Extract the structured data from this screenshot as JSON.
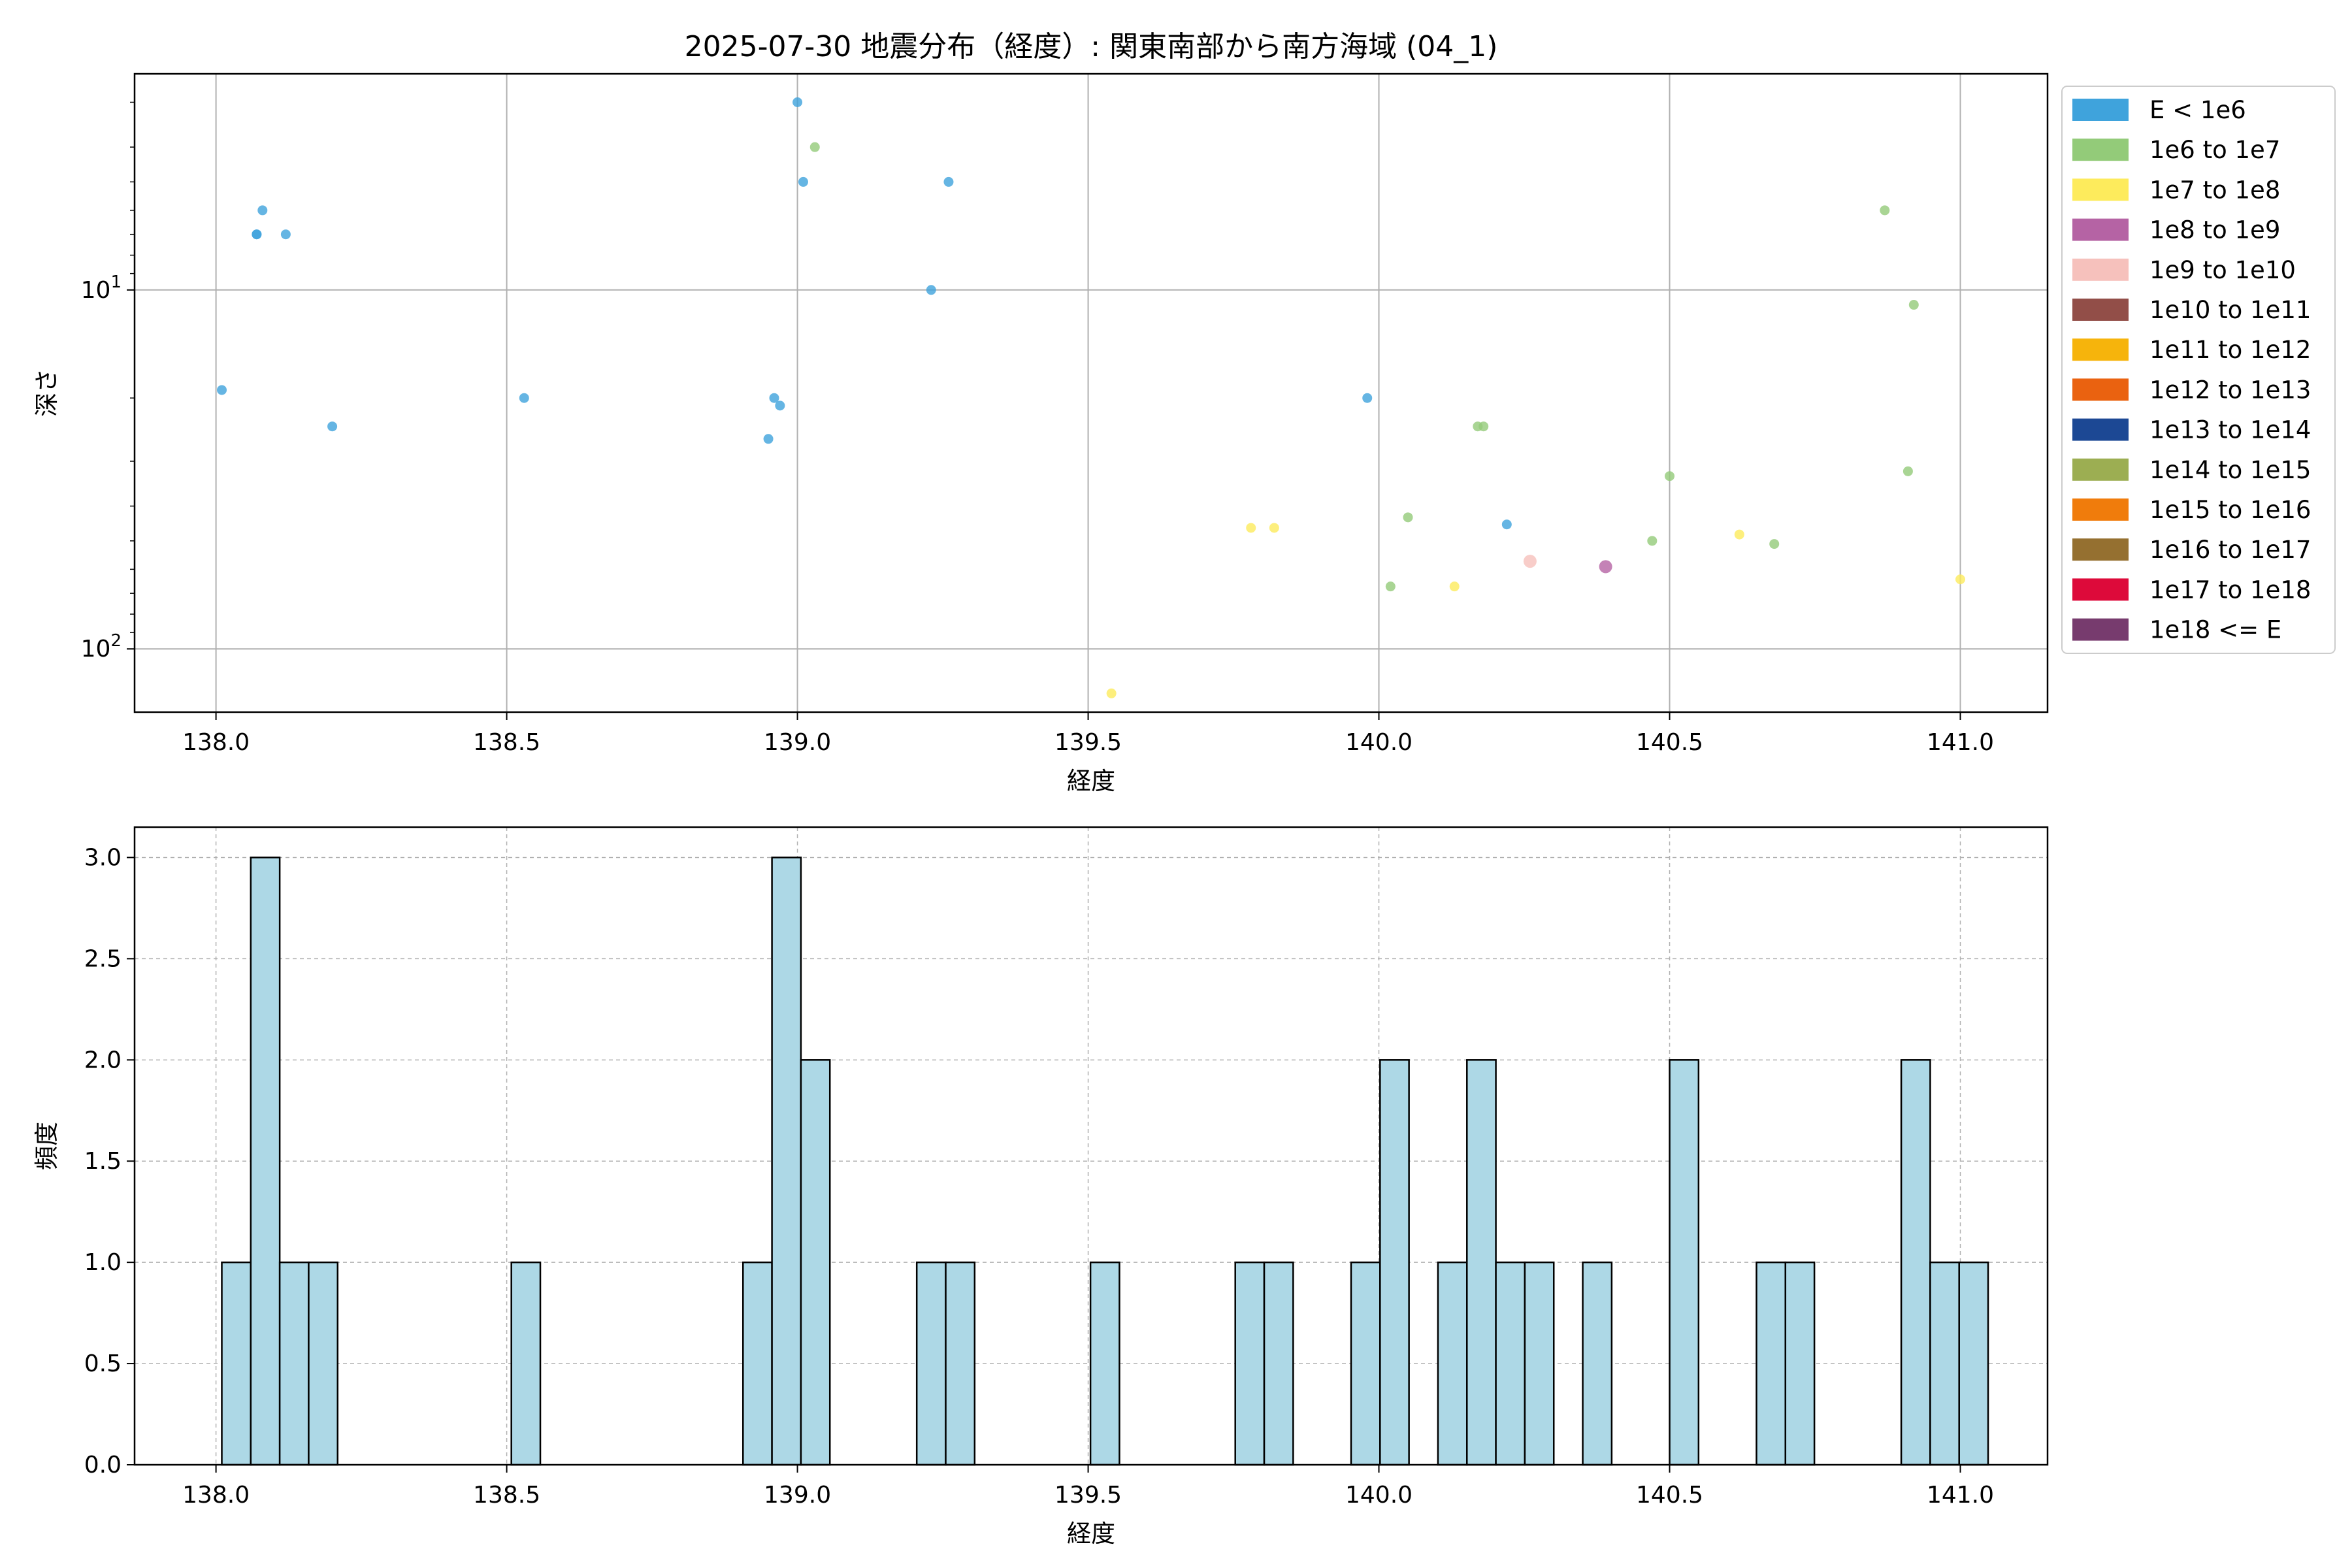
{
  "chart_data": [
    {
      "type": "scatter",
      "title": "2025-07-30 地震分布（経度）: 関東南部から南方海域 (04_1)",
      "xlabel": "経度",
      "ylabel": "深さ",
      "xlim": [
        137.86,
        141.15
      ],
      "ylim": [
        150,
        2.5
      ],
      "y_scale": "log",
      "y_inverted": true,
      "x_ticks": [
        "138.0",
        "138.5",
        "139.0",
        "139.5",
        "140.0",
        "140.5",
        "141.0"
      ],
      "y_ticks": [
        "10^1",
        "10^2"
      ],
      "grid": true,
      "legend_position": "outside-right",
      "legend": [
        {
          "label": "E < 1e6",
          "color": "#3fa3dc"
        },
        {
          "label": "1e6 to 1e7",
          "color": "#93cb79"
        },
        {
          "label": "1e7 to 1e8",
          "color": "#fdeb5c"
        },
        {
          "label": "1e8 to 1e9",
          "color": "#b563a4"
        },
        {
          "label": "1e9 to 1e10",
          "color": "#f6c1bc"
        },
        {
          "label": "1e10 to 1e11",
          "color": "#924e48"
        },
        {
          "label": "1e11 to 1e12",
          "color": "#f6b40c"
        },
        {
          "label": "1e12 to 1e13",
          "color": "#ea6210"
        },
        {
          "label": "1e13 to 1e14",
          "color": "#1c4894"
        },
        {
          "label": "1e14 to 1e15",
          "color": "#9cae52"
        },
        {
          "label": "1e15 to 1e16",
          "color": "#f07c0c"
        },
        {
          "label": "1e16 to 1e17",
          "color": "#957030"
        },
        {
          "label": "1e17 to 1e18",
          "color": "#dd0a3a"
        },
        {
          "label": "1e18 <= E",
          "color": "#773b6e"
        }
      ],
      "series": [
        {
          "label": "E < 1e6",
          "points": [
            [
              138.01,
              19
            ],
            [
              138.07,
              7
            ],
            [
              138.07,
              7
            ],
            [
              138.08,
              6
            ],
            [
              138.12,
              7
            ],
            [
              138.2,
              24
            ],
            [
              138.53,
              20
            ],
            [
              138.95,
              26
            ],
            [
              138.96,
              20
            ],
            [
              138.97,
              21
            ],
            [
              139.0,
              3
            ],
            [
              139.01,
              5
            ],
            [
              139.23,
              10
            ],
            [
              139.26,
              5
            ],
            [
              139.98,
              20
            ],
            [
              140.22,
              45
            ]
          ]
        },
        {
          "label": "1e6 to 1e7",
          "points": [
            [
              139.03,
              4
            ],
            [
              140.02,
              67
            ],
            [
              140.05,
              43
            ],
            [
              140.17,
              24
            ],
            [
              140.18,
              24
            ],
            [
              140.47,
              50
            ],
            [
              140.5,
              33
            ],
            [
              140.68,
              51
            ],
            [
              140.87,
              6
            ],
            [
              140.91,
              32
            ],
            [
              140.92,
              11
            ]
          ]
        },
        {
          "label": "1e7 to 1e8",
          "points": [
            [
              139.54,
              133
            ],
            [
              139.78,
              46
            ],
            [
              139.82,
              46
            ],
            [
              140.13,
              67
            ],
            [
              140.62,
              48
            ],
            [
              141.0,
              64
            ]
          ]
        },
        {
          "label": "1e8 to 1e9",
          "points": [
            [
              140.39,
              59
            ]
          ]
        },
        {
          "label": "1e9 to 1e10",
          "points": [
            [
              140.26,
              57
            ]
          ]
        }
      ]
    },
    {
      "type": "bar",
      "xlabel": "経度",
      "ylabel": "頻度",
      "xlim": [
        137.86,
        141.15
      ],
      "ylim": [
        0,
        3.15
      ],
      "x_ticks": [
        "138.0",
        "138.5",
        "139.0",
        "139.5",
        "140.0",
        "140.5",
        "141.0"
      ],
      "y_ticks": [
        "0.0",
        "0.5",
        "1.0",
        "1.5",
        "2.0",
        "2.5",
        "3.0"
      ],
      "grid": true,
      "bin_start": 138.01,
      "bin_width": 0.0498,
      "counts": [
        1,
        3,
        1,
        1,
        0,
        0,
        0,
        0,
        0,
        0,
        1,
        0,
        0,
        0,
        0,
        0,
        0,
        0,
        1,
        3,
        2,
        0,
        0,
        0,
        1,
        1,
        0,
        0,
        0,
        0,
        1,
        0,
        0,
        0,
        0,
        1,
        1,
        0,
        0,
        1,
        2,
        0,
        1,
        2,
        1,
        1,
        0,
        1,
        0,
        0,
        2,
        0,
        0,
        1,
        1,
        0,
        0,
        0,
        2,
        1,
        1
      ],
      "bar_color": "#add8e6",
      "edge_color": "#000000"
    }
  ]
}
